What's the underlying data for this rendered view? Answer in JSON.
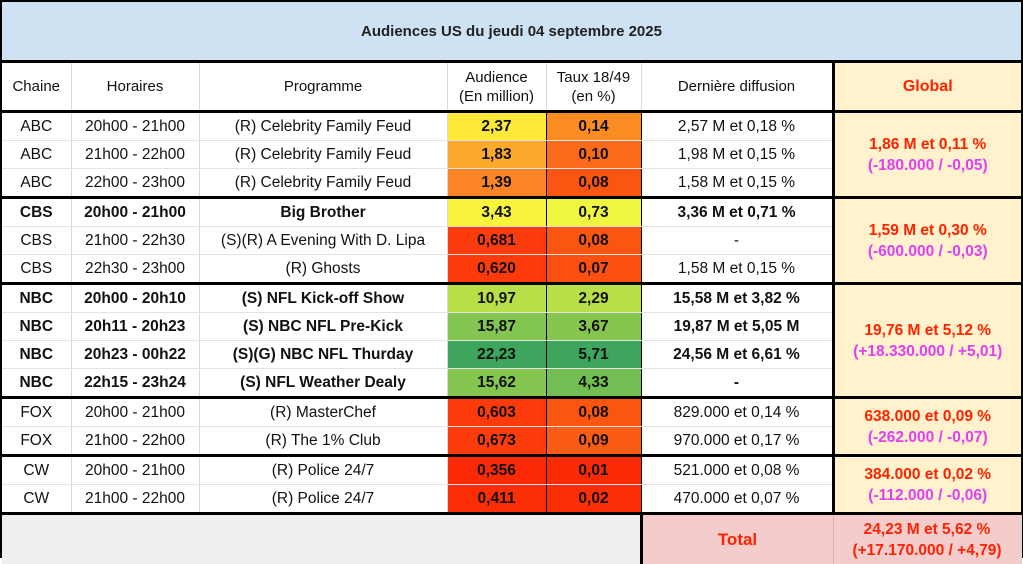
{
  "title": "Audiences US du jeudi 04 septembre 2025",
  "headers": {
    "chaine": "Chaine",
    "horaires": "Horaires",
    "programme": "Programme",
    "audience_l1": "Audience",
    "audience_l2": "(En million)",
    "taux_l1": "Taux 18/49",
    "taux_l2": "(en %)",
    "derniere": "Dernière diffusion",
    "global": "Global"
  },
  "groups": [
    {
      "network": "ABC",
      "global_line1": "1,86 M et 0,11 %",
      "global_line2": "(-180.000 / -0,05)",
      "rows": [
        {
          "chaine": "ABC",
          "horaires": "20h00 - 21h00",
          "programme": "(R) Celebrity Family Feud",
          "audience": "2,37",
          "taux": "0,14",
          "derniere": "2,57 M et 0,18 %",
          "bold": false,
          "aud_color": "#fde93a",
          "taux_color": "#fb8c24"
        },
        {
          "chaine": "ABC",
          "horaires": "21h00 - 22h00",
          "programme": "(R) Celebrity Family Feud",
          "audience": "1,83",
          "taux": "0,10",
          "derniere": "1,98 M et 0,15 %",
          "bold": false,
          "aud_color": "#fbaa2c",
          "taux_color": "#fb6a1a"
        },
        {
          "chaine": "ABC",
          "horaires": "22h00 - 23h00",
          "programme": "(R) Celebrity Family Feud",
          "audience": "1,39",
          "taux": "0,08",
          "derniere": "1,58 M et 0,15 %",
          "bold": false,
          "aud_color": "#fb8424",
          "taux_color": "#fb5512"
        }
      ]
    },
    {
      "network": "CBS",
      "global_line1": "1,59 M et 0,30 %",
      "global_line2": "(-600.000 / -0,03)",
      "rows": [
        {
          "chaine": "CBS",
          "horaires": "20h00 - 21h00",
          "programme": "Big Brother",
          "audience": "3,43",
          "taux": "0,73",
          "derniere": "3,36 M et 0,71 %",
          "bold": true,
          "aud_color": "#f8f43e",
          "taux_color": "#eef640"
        },
        {
          "chaine": "CBS",
          "horaires": "21h00 - 22h30",
          "programme": "(S)(R) A Evening With D. Lipa",
          "audience": "0,681",
          "taux": "0,08",
          "derniere": "-",
          "bold": false,
          "aud_color": "#fc3c0c",
          "taux_color": "#fb5512"
        },
        {
          "chaine": "CBS",
          "horaires": "22h30 - 23h00",
          "programme": "(R) Ghosts",
          "audience": "0,620",
          "taux": "0,07",
          "derniere": "1,58 M et 0,15 %",
          "bold": false,
          "aud_color": "#fc3a0b",
          "taux_color": "#fb5010"
        }
      ]
    },
    {
      "network": "NBC",
      "global_line1": "19,76 M et 5,12 %",
      "global_line2": "(+18.330.000 / +5,01)",
      "rows": [
        {
          "chaine": "NBC",
          "horaires": "20h00 - 20h10",
          "programme": "(S) NFL Kick-off Show",
          "audience": "10,97",
          "taux": "2,29",
          "derniere": "15,58 M et 3,82 %",
          "bold": true,
          "aud_color": "#b8df48",
          "taux_color": "#b9df48"
        },
        {
          "chaine": "NBC",
          "horaires": "20h11 - 20h23",
          "programme": "(S) NBC NFL Pre-Kick",
          "audience": "15,87",
          "taux": "3,67",
          "derniere": "19,87 M et 5,05 M",
          "bold": true,
          "aud_color": "#82c550",
          "taux_color": "#86c64f"
        },
        {
          "chaine": "NBC",
          "horaires": "20h23 - 00h22",
          "programme": "(S)(G) NBC NFL Thurday",
          "audience": "22,23",
          "taux": "5,71",
          "derniere": "24,56 M et 6,61 %",
          "bold": true,
          "aud_color": "#3ea55c",
          "taux_color": "#3ea55c"
        },
        {
          "chaine": "NBC",
          "horaires": "22h15 - 23h24",
          "programme": "(S) NFL Weather Dealy",
          "audience": "15,62",
          "taux": "4,33",
          "derniere": "-",
          "bold": true,
          "aud_color": "#84c650",
          "taux_color": "#72be53"
        }
      ]
    },
    {
      "network": "FOX",
      "global_line1": "638.000 et 0,09 %",
      "global_line2": "(-262.000 / -0,07)",
      "rows": [
        {
          "chaine": "FOX",
          "horaires": "20h00 - 21h00",
          "programme": "(R) MasterChef",
          "audience": "0,603",
          "taux": "0,08",
          "derniere": "829.000 et 0,14 %",
          "bold": false,
          "aud_color": "#fc3a0b",
          "taux_color": "#fb5512"
        },
        {
          "chaine": "FOX",
          "horaires": "21h00 - 22h00",
          "programme": "(R) The 1% Club",
          "audience": "0,673",
          "taux": "0,09",
          "derniere": "970.000 et 0,17 %",
          "bold": false,
          "aud_color": "#fc3c0c",
          "taux_color": "#fb5c15"
        }
      ]
    },
    {
      "network": "CW",
      "global_line1": "384.000 et 0,02 %",
      "global_line2": "(-112.000 / -0,06)",
      "rows": [
        {
          "chaine": "CW",
          "horaires": "20h00 - 21h00",
          "programme": "(R) Police 24/7",
          "audience": "0,356",
          "taux": "0,01",
          "derniere": "521.000 et 0,08 %",
          "bold": false,
          "aud_color": "#fc2a04",
          "taux_color": "#fc2a04"
        },
        {
          "chaine": "CW",
          "horaires": "21h00 - 22h00",
          "programme": "(R) Police 24/7",
          "audience": "0,411",
          "taux": "0,02",
          "derniere": "470.000 et 0,07 %",
          "bold": false,
          "aud_color": "#fc2e06",
          "taux_color": "#fc2e06"
        }
      ]
    }
  ],
  "total": {
    "label": "Total",
    "line1": "24,23 M et 5,62 %",
    "line2": "(+17.170.000 / +4,79)"
  },
  "colors": {
    "title_bg": "#cfe2f3",
    "global_bg": "#fff2cc",
    "global_text": "#ff2200",
    "delta_text": "#e23ef2",
    "total_bg": "#f4cccc",
    "empty_bg": "#efefef"
  }
}
